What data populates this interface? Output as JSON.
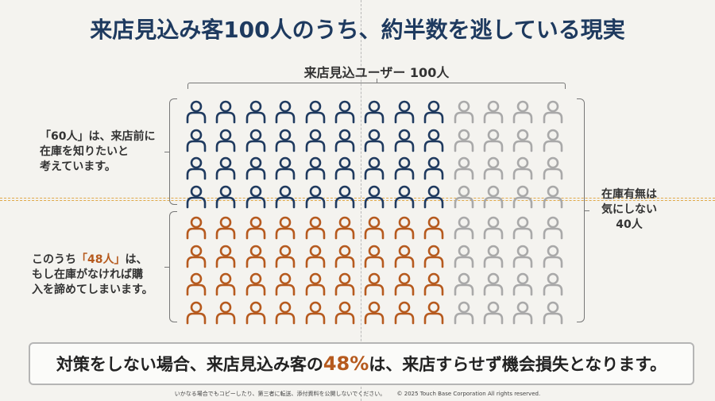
{
  "title": "来店見込み客100人のうち、約半数を逃している現実",
  "top_label": "来店見込ユーザー 100人",
  "grid": {
    "rows": 8,
    "cols": 13,
    "colors": {
      "navy": "#1f3a5f",
      "orange": "#b65a1e",
      "gray": "#a9a9a9"
    },
    "colored_cols": 9,
    "upper_rows": 4,
    "lower_rows": 4
  },
  "left_upper": {
    "quote_open": "「",
    "amount": "60人",
    "quote_close": "」",
    "line1_rest": "は、来店前に",
    "line2": "在庫を知りたいと",
    "line3": "考えています。"
  },
  "left_lower": {
    "line1_prefix": "このうち",
    "amount": "「48人」",
    "line1_rest": "は、",
    "line2": "もし在庫がなければ購",
    "line3": "入を諦めてしまいます。"
  },
  "right_text": {
    "line1": "在庫有無は",
    "line2": "気にしない",
    "line3": "40人"
  },
  "conclusion": {
    "prefix": "対策をしない場合、来店見込み客の",
    "percent": "48%",
    "suffix": "は、来店すらせず機会損失となります。"
  },
  "footer": {
    "notice": "いかなる場合でもコピーしたり、第三者に転送、添付資料を公開しないでください。",
    "copyright": "© 2025 Touch Base Corporation All rights reserved."
  }
}
